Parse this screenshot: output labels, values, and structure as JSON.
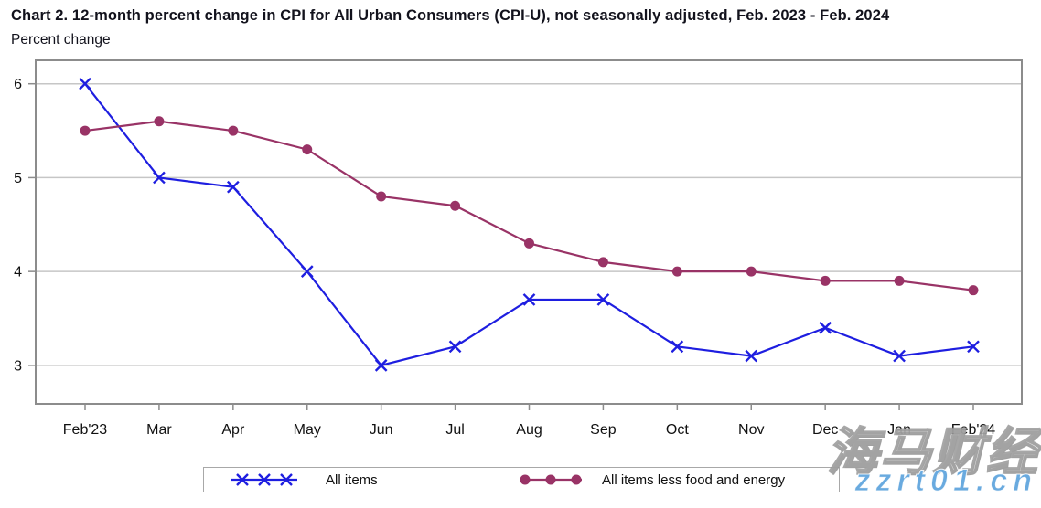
{
  "header": {
    "title": "Chart 2. 12-month percent change in CPI for All Urban Consumers (CPI-U), not seasonally adjusted, Feb. 2023 - Feb. 2024",
    "subtitle": "Percent change"
  },
  "chart_data": {
    "type": "line",
    "title": "Chart 2. 12-month percent change in CPI for All Urban Consumers (CPI-U), not seasonally adjusted, Feb. 2023 - Feb. 2024",
    "ylabel": "Percent change",
    "xlabel": "",
    "categories": [
      "Feb'23",
      "Mar",
      "Apr",
      "May",
      "Jun",
      "Jul",
      "Aug",
      "Sep",
      "Oct",
      "Nov",
      "Dec",
      "Jan",
      "Feb'24"
    ],
    "series": [
      {
        "name": "All items",
        "marker": "x",
        "color": "#1e1ee0",
        "values": [
          6.0,
          5.0,
          4.9,
          4.0,
          3.0,
          3.2,
          3.7,
          3.7,
          3.2,
          3.1,
          3.4,
          3.1,
          3.2
        ]
      },
      {
        "name": "All items less food and energy",
        "marker": "circle",
        "color": "#993366",
        "values": [
          5.5,
          5.6,
          5.5,
          5.3,
          4.8,
          4.7,
          4.3,
          4.1,
          4.0,
          4.0,
          3.9,
          3.9,
          3.8
        ]
      }
    ],
    "yticks": [
      3,
      4,
      5,
      6
    ],
    "ylim": [
      2.58,
      6.26
    ],
    "grid": true,
    "legend_position": "bottom",
    "grid_color": "#c6c6c6",
    "border_color": "#8c8c8c",
    "tick_color": "#8c8c8c",
    "text_color": "#111111"
  },
  "watermark": {
    "line1": "海马财经",
    "line2": "zzrt01.cn",
    "color": "#69aadf"
  }
}
